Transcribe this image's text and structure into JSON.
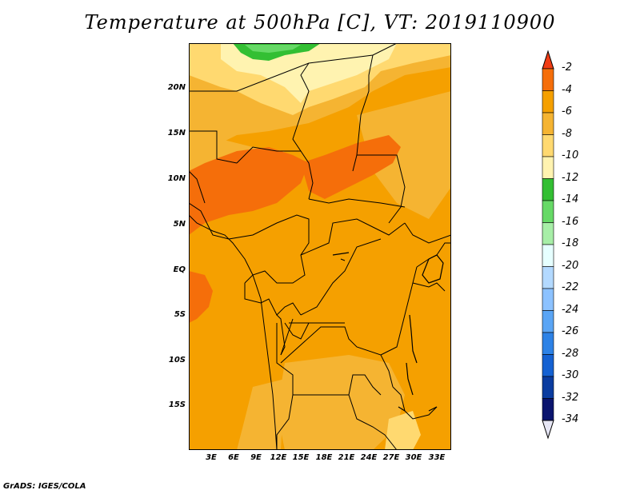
{
  "title": "Temperature at 500hPa [C], VT: 2019110900",
  "credit": "GrADS: IGES/COLA",
  "map": {
    "lat_labels": [
      "20N",
      "15N",
      "10N",
      "5N",
      "EQ",
      "5S",
      "10S",
      "15S"
    ],
    "lon_labels": [
      "3E",
      "6E",
      "9E",
      "12E",
      "15E",
      "18E",
      "21E",
      "24E",
      "27E",
      "30E",
      "33E"
    ],
    "lat_range": [
      -20,
      24
    ],
    "lon_range": [
      0,
      35
    ]
  },
  "colorbar": {
    "labels": [
      "-2",
      "-4",
      "-6",
      "-8",
      "-10",
      "-12",
      "-14",
      "-16",
      "-18",
      "-20",
      "-22",
      "-24",
      "-26",
      "-28",
      "-30",
      "-32",
      "-34"
    ],
    "colors": [
      "#f03c14",
      "#f56e0a",
      "#f5a000",
      "#f5b432",
      "#ffd970",
      "#fff3b0",
      "#33bf33",
      "#66d966",
      "#a7eea7",
      "#e6ffff",
      "#b3d9ff",
      "#8cc2ff",
      "#5aa5f5",
      "#2d82e6",
      "#1461d2",
      "#0a3ca0",
      "#0a146e"
    ]
  },
  "fill_colors": {
    "ocean_warm": "#f5a000",
    "orange": "#f5a000",
    "dark_orange": "#f56e0a",
    "light_orange": "#f5b432",
    "pale": "#ffd970",
    "very_pale": "#fff3b0",
    "green": "#33bf33",
    "border": "#000000"
  }
}
